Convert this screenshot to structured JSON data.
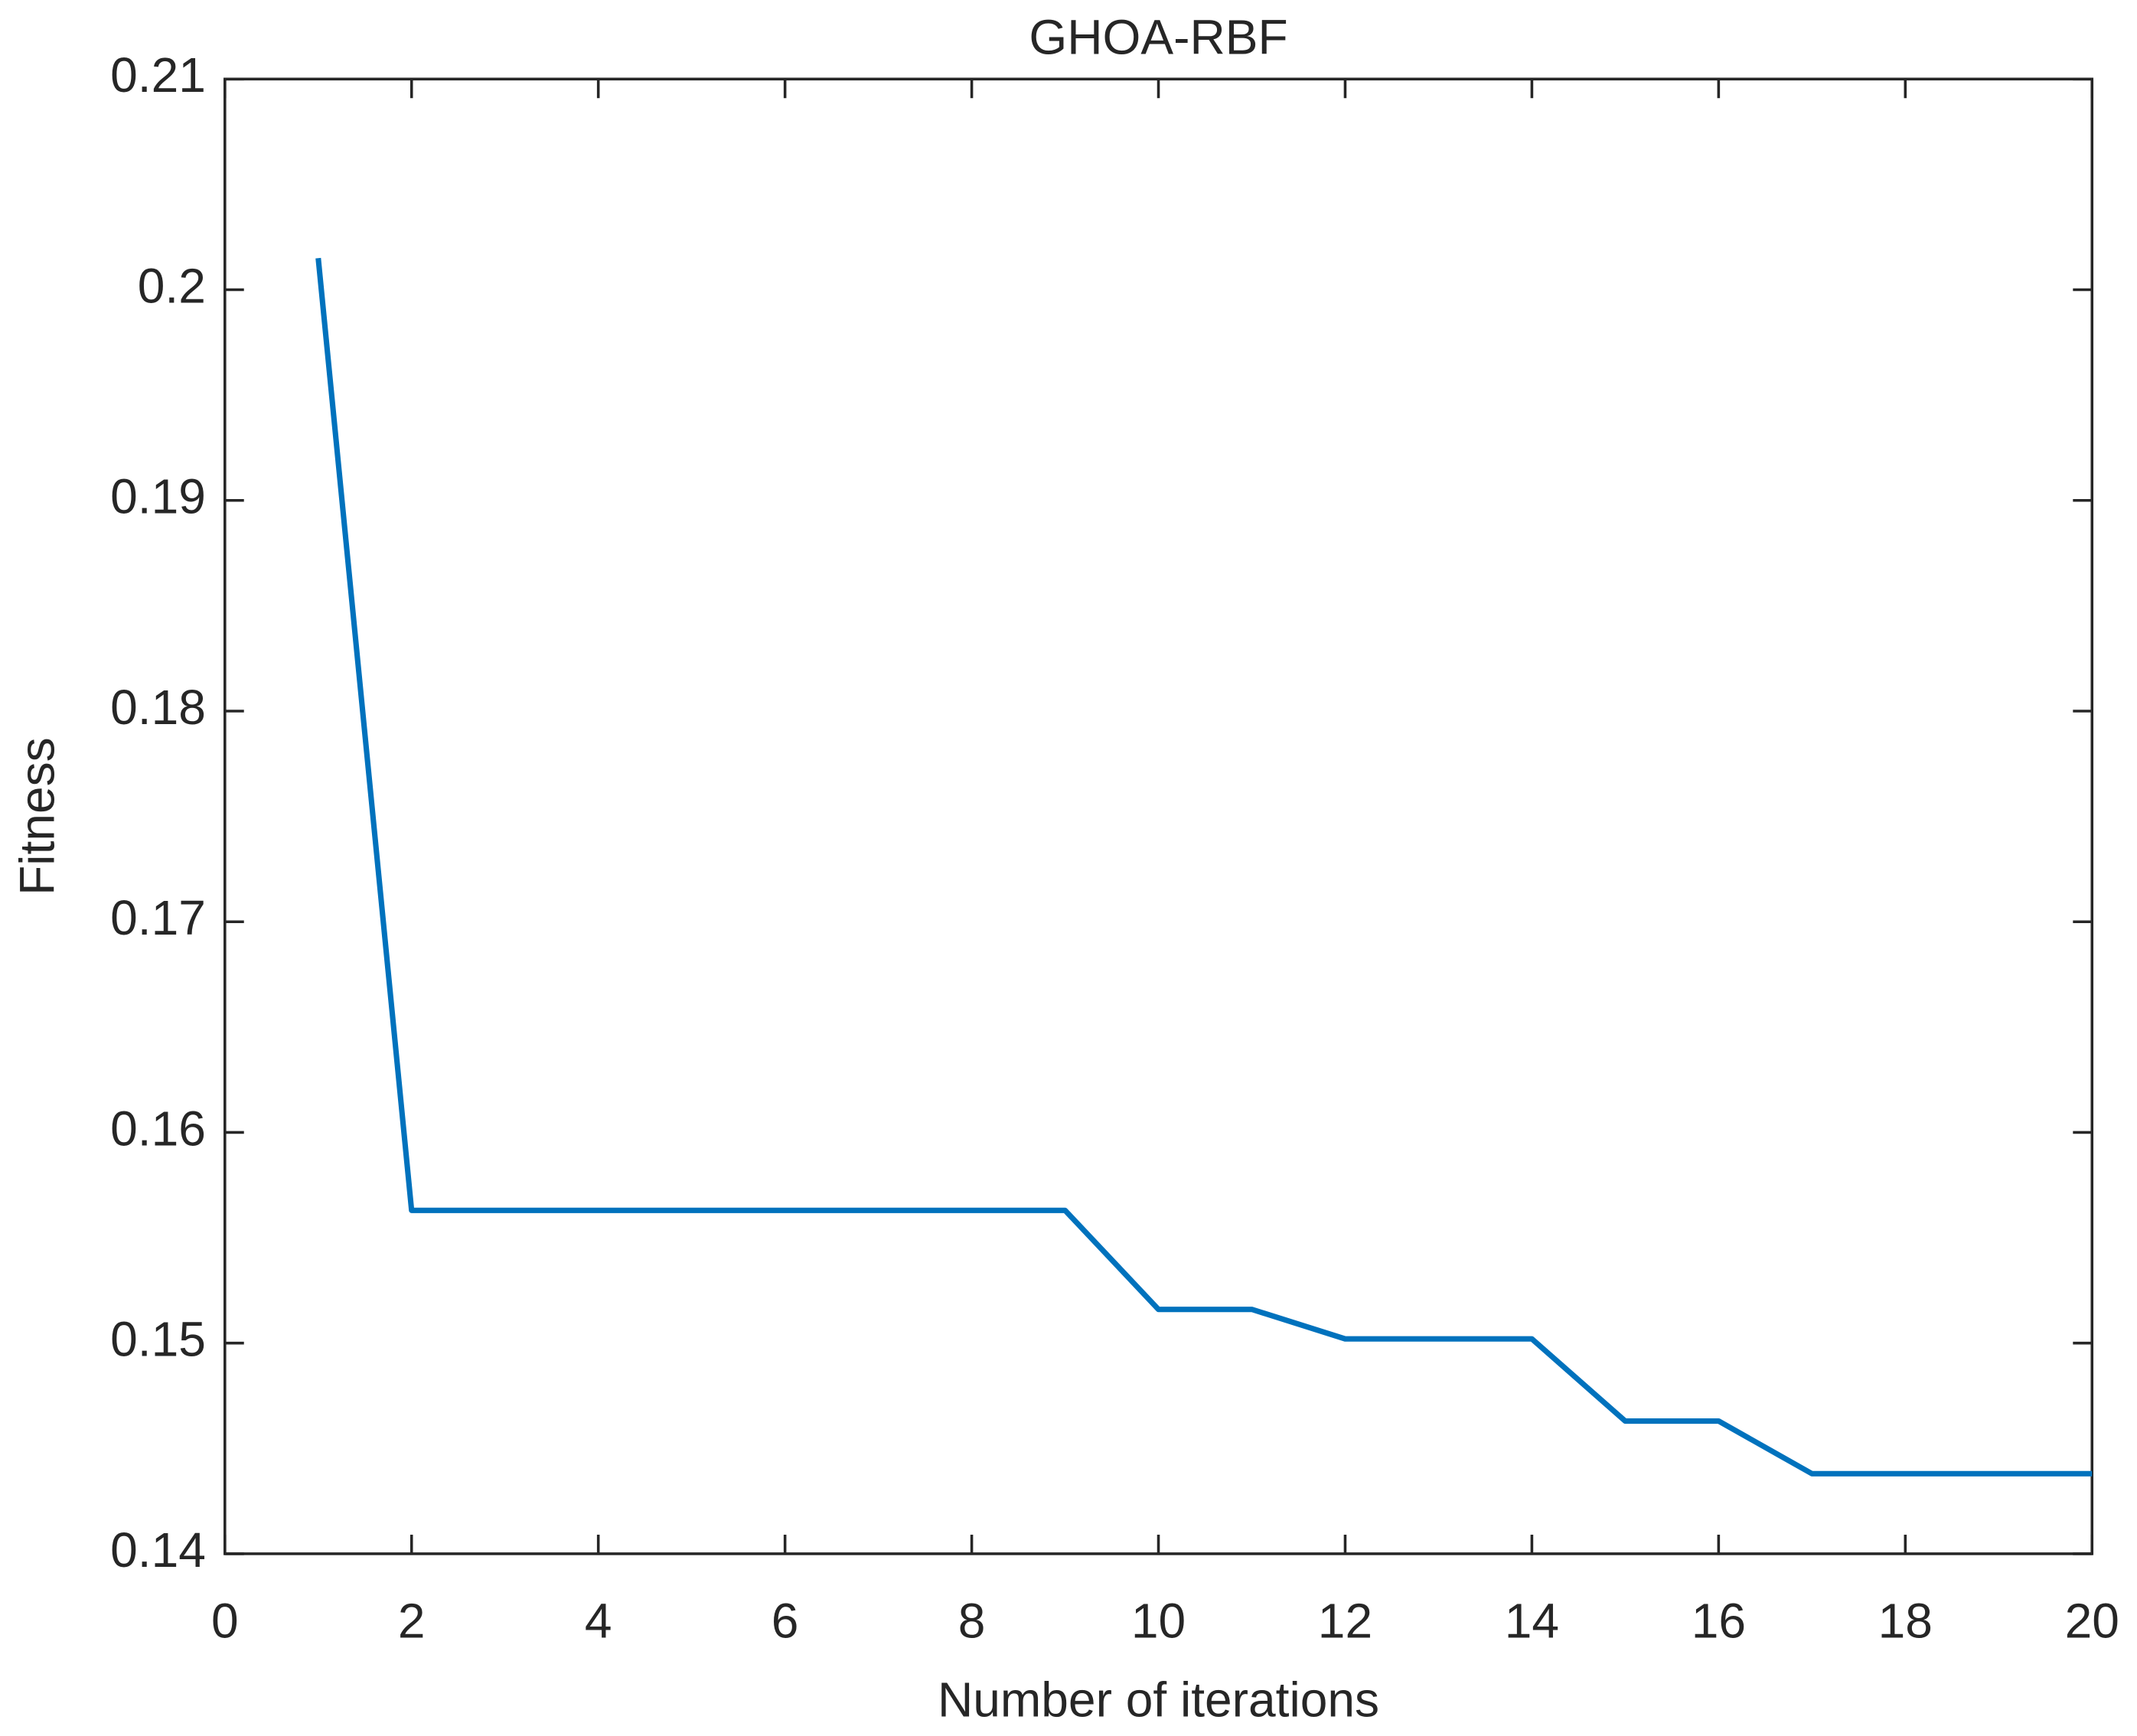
{
  "chart_data": {
    "type": "line",
    "title": "GHOA-RBF",
    "x_label": "Number of iterations",
    "y_label": "Fitness",
    "x": [
      1,
      2,
      3,
      4,
      5,
      6,
      7,
      8,
      9,
      10,
      11,
      12,
      13,
      14,
      15,
      16,
      17,
      18,
      19,
      20
    ],
    "series": [
      {
        "name": "GHOA-RBF",
        "color": "#0072bd",
        "values": [
          0.2015,
          0.1563,
          0.1563,
          0.1563,
          0.1563,
          0.1563,
          0.1563,
          0.1563,
          0.1563,
          0.1516,
          0.1516,
          0.1502,
          0.1502,
          0.1502,
          0.1463,
          0.1463,
          0.1438,
          0.1438,
          0.1438,
          0.1438
        ]
      }
    ],
    "xlim": [
      0,
      20
    ],
    "xticks": [
      0,
      2,
      4,
      6,
      8,
      10,
      12,
      14,
      16,
      18,
      20
    ],
    "ylim": [
      0.14,
      0.21
    ],
    "yticks": [
      0.14,
      0.15,
      0.16,
      0.17,
      0.18,
      0.19,
      0.2,
      0.21
    ]
  }
}
